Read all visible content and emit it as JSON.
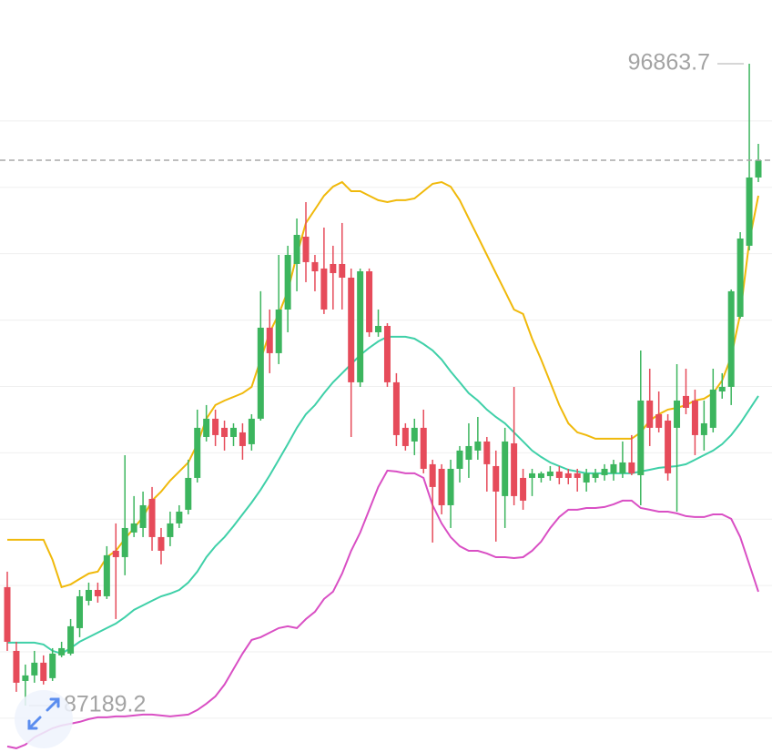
{
  "chart_data": {
    "type": "candlestick",
    "ylim": [
      86490,
      97824
    ],
    "grid_lines": [
      87000,
      88000,
      89000,
      90000,
      91000,
      92000,
      93000,
      94000,
      95000,
      96000
    ],
    "up_color": "#3cb55e",
    "down_color": "#e64b5a",
    "open": [
      88975,
      88014,
      87561,
      87644,
      87836,
      87603,
      87946,
      87973,
      88357,
      88769,
      88933,
      88837,
      89523,
      89427,
      89798,
      89866,
      90305,
      89729,
      89729,
      89935,
      90141,
      90621,
      91238,
      91513,
      91376,
      91238,
      91307,
      91129,
      91513,
      92885,
      92501,
      93159,
      93845,
      94257,
      93873,
      93777,
      93845,
      93845,
      93639,
      92062,
      93735,
      92816,
      92912,
      92062,
      91376,
      91170,
      91376,
      90827,
      90758,
      90209,
      90758,
      90895,
      91033,
      91170,
      90799,
      90347,
      91142,
      90621,
      90621,
      90621,
      90648,
      90717,
      90690,
      90690,
      90552,
      90621,
      90662,
      90690,
      90690,
      90854,
      90662,
      91787,
      91581,
      91485,
      91376,
      91856,
      91787,
      91266,
      91376,
      91924,
      91993,
      93049,
      94120,
      95149
    ],
    "high": [
      89208,
      88151,
      87808,
      88014,
      87946,
      88055,
      88151,
      88494,
      88933,
      89043,
      89043,
      89592,
      89935,
      90964,
      90347,
      90415,
      90484,
      89866,
      90113,
      90209,
      90895,
      91650,
      91719,
      91650,
      91485,
      91444,
      91444,
      91581,
      93434,
      93159,
      93982,
      94120,
      94531,
      94778,
      93982,
      94394,
      94120,
      94463,
      93777,
      93777,
      93777,
      93159,
      92953,
      92199,
      91444,
      91513,
      91650,
      90895,
      90827,
      90895,
      91101,
      91444,
      91540,
      91238,
      91033,
      91376,
      91993,
      90758,
      90758,
      90717,
      90799,
      90799,
      90758,
      90758,
      90758,
      90758,
      90827,
      90895,
      91170,
      91266,
      92542,
      92267,
      91924,
      91581,
      92336,
      92267,
      91952,
      91787,
      92267,
      92199,
      93461,
      94325,
      96863.7,
      95656
    ],
    "low": [
      88014,
      87397,
      87189.2,
      87534,
      87507,
      87561,
      87918,
      87946,
      88220,
      88700,
      88741,
      88796,
      88494,
      89153,
      89729,
      89729,
      89523,
      89318,
      89592,
      89866,
      90072,
      90552,
      91170,
      91101,
      91033,
      91101,
      90895,
      91033,
      91485,
      92199,
      92336,
      92816,
      93434,
      93571,
      93434,
      93091,
      93159,
      93159,
      91238,
      91993,
      92748,
      92748,
      91993,
      91101,
      91033,
      90964,
      90690,
      89647,
      90072,
      89866,
      90552,
      90621,
      90895,
      90415,
      89661,
      89866,
      90209,
      90141,
      90347,
      90552,
      90580,
      90525,
      90525,
      90415,
      90415,
      90552,
      90580,
      90580,
      90621,
      90662,
      90209,
      91101,
      91307,
      90580,
      90113,
      91581,
      90964,
      91033,
      91307,
      91815,
      91719,
      93022,
      94051,
      95080
    ],
    "close": [
      88151,
      87534,
      87644,
      87836,
      87561,
      87973,
      88055,
      88385,
      88837,
      88933,
      88837,
      89455,
      89427,
      89866,
      89935,
      90209,
      89729,
      89523,
      89935,
      90113,
      90621,
      91376,
      91513,
      91266,
      91238,
      91376,
      91101,
      91513,
      92885,
      92501,
      93159,
      93982,
      94284,
      93873,
      93735,
      93159,
      93708,
      93639,
      92062,
      93735,
      92816,
      92912,
      92062,
      91266,
      91101,
      91376,
      90758,
      90484,
      90209,
      90758,
      91033,
      91101,
      91170,
      90827,
      90415,
      91170,
      90347,
      90278,
      90690,
      90690,
      90717,
      90621,
      90621,
      90621,
      90690,
      90690,
      90758,
      90827,
      90854,
      90690,
      91787,
      91376,
      91376,
      90690,
      91787,
      91677,
      91266,
      91444,
      91952,
      91993,
      93434,
      94229,
      95149,
      95409
    ],
    "overlays": [
      {
        "color": "#f0b90b",
        "values": [
          89688,
          89688,
          89688,
          89688,
          89688,
          89386,
          88975,
          89016,
          89098,
          89180,
          89208,
          89427,
          89523,
          89702,
          89866,
          90031,
          90278,
          90415,
          90580,
          90717,
          90854,
          91129,
          91513,
          91719,
          91787,
          91842,
          91897,
          91993,
          92405,
          92816,
          93091,
          93434,
          93982,
          94463,
          94668,
          94874,
          95011,
          95080,
          94943,
          94943,
          94874,
          94806,
          94778,
          94806,
          94806,
          94833,
          94943,
          95053,
          95080,
          95011,
          94806,
          94531,
          94257,
          93982,
          93708,
          93434,
          93159,
          93091,
          92720,
          92405,
          92062,
          91719,
          91444,
          91307,
          91266,
          91211,
          91211,
          91211,
          91211,
          91211,
          91307,
          91485,
          91581,
          91650,
          91677,
          91719,
          91787,
          91815,
          91897,
          92089,
          92446,
          93091,
          94188,
          94874
        ]
      },
      {
        "color": "#3fd0a8",
        "values": [
          88138,
          88138,
          88138,
          88138,
          88110,
          88014,
          87973,
          88055,
          88151,
          88220,
          88289,
          88357,
          88426,
          88522,
          88632,
          88700,
          88769,
          88837,
          88878,
          88933,
          89043,
          89208,
          89427,
          89592,
          89729,
          89894,
          90072,
          90250,
          90443,
          90662,
          90895,
          91129,
          91376,
          91581,
          91719,
          91897,
          92062,
          92199,
          92336,
          92473,
          92583,
          92679,
          92748,
          92748,
          92748,
          92720,
          92638,
          92542,
          92405,
          92226,
          92062,
          91897,
          91787,
          91650,
          91540,
          91444,
          91307,
          91170,
          91033,
          90937,
          90854,
          90799,
          90744,
          90717,
          90690,
          90690,
          90690,
          90690,
          90690,
          90690,
          90717,
          90744,
          90772,
          90786,
          90799,
          90827,
          90895,
          90964,
          91033,
          91129,
          91266,
          91444,
          91650,
          91856
        ]
      },
      {
        "color": "#d94fc4",
        "values": [
          86574,
          86546,
          86601,
          86711,
          86779,
          86848,
          86889,
          86917,
          86944,
          86985,
          87013,
          87013,
          87026,
          87026,
          87040,
          87054,
          87054,
          87040,
          87026,
          87040,
          87054,
          87122,
          87218,
          87328,
          87507,
          87740,
          87973,
          88179,
          88220,
          88289,
          88357,
          88385,
          88357,
          88494,
          88604,
          88796,
          88906,
          89180,
          89523,
          89798,
          90141,
          90484,
          90731,
          90717,
          90690,
          90690,
          90621,
          90209,
          89935,
          89729,
          89592,
          89523,
          89523,
          89482,
          89427,
          89427,
          89413,
          89427,
          89523,
          89661,
          89866,
          90031,
          90141,
          90141,
          90168,
          90168,
          90182,
          90223,
          90278,
          90278,
          90168,
          90141,
          90113,
          90113,
          90086,
          90045,
          90031,
          90031,
          90072,
          90072,
          90004,
          89729,
          89318,
          88906
        ]
      }
    ]
  }
}
